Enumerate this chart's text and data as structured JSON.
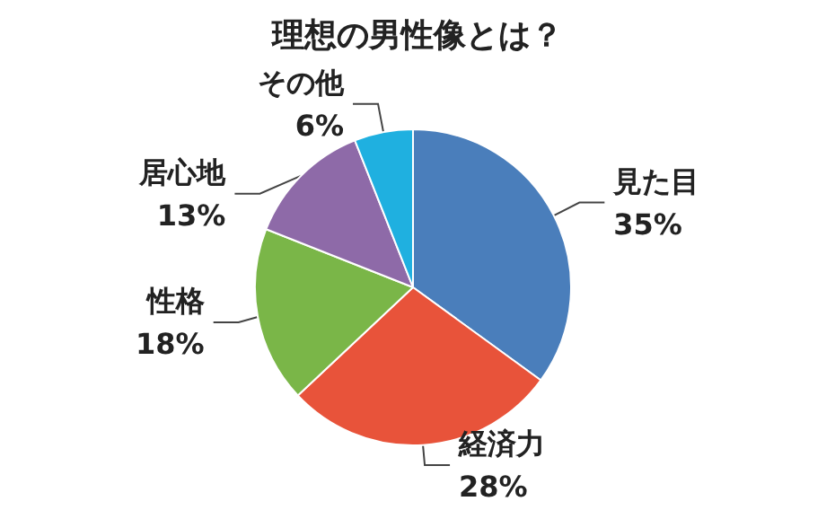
{
  "chart_data": {
    "type": "pie",
    "title": "理想の男性像とは？",
    "categories": [
      "見た目",
      "経済力",
      "性格",
      "居心地",
      "その他"
    ],
    "values": [
      35,
      28,
      18,
      13,
      6
    ],
    "value_labels": [
      "35%",
      "28%",
      "18%",
      "13%",
      "6%"
    ],
    "colors": [
      "#4a7ebb",
      "#e8533a",
      "#7ab648",
      "#8e6aa8",
      "#1fb0e0"
    ],
    "legend": false
  }
}
